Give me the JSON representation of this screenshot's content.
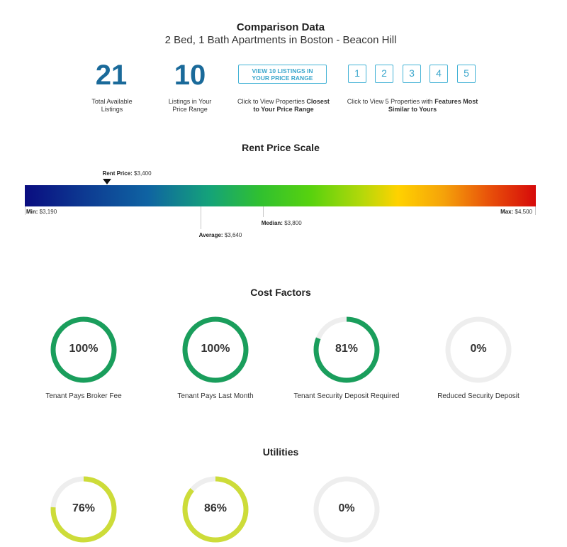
{
  "header": {
    "title": "Comparison Data",
    "subtitle": "2 Bed, 1 Bath Apartments in Boston - Beacon Hill"
  },
  "stats": {
    "total": {
      "value": "21",
      "label_line1": "Total Available",
      "label_line2": "Listings"
    },
    "in_range": {
      "value": "10",
      "label_line1": "Listings in Your",
      "label_line2": "Price Range"
    }
  },
  "view_button": {
    "label_line1": "VIEW 10 LISTINGS IN",
    "label_line2": "YOUR PRICE RANGE",
    "caption_line1": "Click to View Properties ",
    "caption_bold1": "Closest",
    "caption_line2_bold": "to Your Price Range"
  },
  "similar": {
    "buttons": [
      "1",
      "2",
      "3",
      "4",
      "5"
    ],
    "caption_line1": "Click to View 5 Properties with ",
    "caption_bold1": "Features Most",
    "caption_line2_bold": "Similar to Yours"
  },
  "price_scale": {
    "title": "Rent Price Scale",
    "min": 3190,
    "max": 4500,
    "rent": {
      "label": "Rent Price:",
      "value": 3400,
      "text": "$3,400"
    },
    "min_label": {
      "label": "Min:",
      "text": "$3,190"
    },
    "max_label": {
      "label": "Max:",
      "text": "$4,500"
    },
    "average": {
      "label": "Average:",
      "value": 3640,
      "text": "$3,640"
    },
    "median": {
      "label": "Median:",
      "value": 3800,
      "text": "$3,800"
    }
  },
  "cost_factors": {
    "title": "Cost Factors",
    "items": [
      {
        "percent": 100,
        "text": "100%",
        "label": "Tenant Pays Broker Fee"
      },
      {
        "percent": 100,
        "text": "100%",
        "label": "Tenant Pays Last Month"
      },
      {
        "percent": 81,
        "text": "81%",
        "label": "Tenant Security Deposit Required"
      },
      {
        "percent": 0,
        "text": "0%",
        "label": "Reduced Security Deposit"
      }
    ],
    "color": "#1a9e5c"
  },
  "utilities": {
    "title": "Utilities",
    "items": [
      {
        "percent": 76,
        "text": "76%"
      },
      {
        "percent": 86,
        "text": "86%"
      },
      {
        "percent": 0,
        "text": "0%"
      }
    ],
    "color": "#cddc39"
  },
  "colors": {
    "accent": "#45b3d6",
    "number": "#1a6a9a",
    "track": "#eeeeee"
  }
}
